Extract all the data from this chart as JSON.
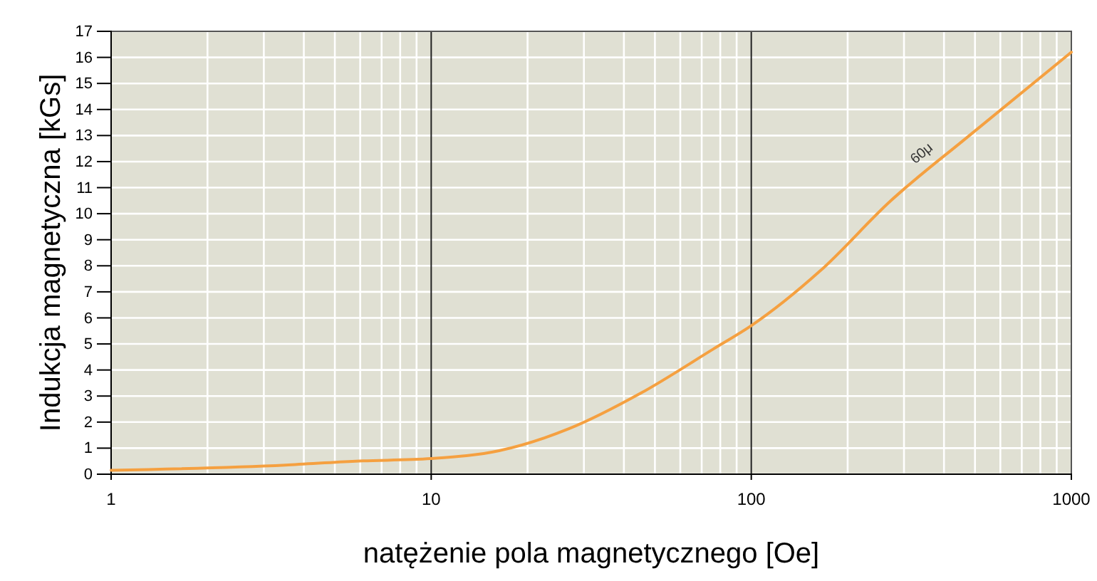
{
  "chart_data": {
    "type": "line",
    "xlabel": "natężenie pola magnetycznego [Oe]",
    "ylabel": "Indukcja magnetyczna [kGs]",
    "log": "x",
    "grid": true,
    "marker": "none",
    "line_style": "solid",
    "xlim": [
      1,
      1000
    ],
    "xticks": [
      1,
      10,
      100,
      1000
    ],
    "ylim": [
      0,
      17
    ],
    "yticks": [
      0,
      1,
      2,
      3,
      4,
      5,
      6,
      7,
      8,
      9,
      10,
      11,
      12,
      13,
      14,
      15,
      16,
      17
    ],
    "x": [
      1,
      3.5,
      5.8,
      10,
      16.3,
      27,
      45,
      76,
      100,
      164,
      273,
      480,
      1000
    ],
    "series": [
      {
        "name": "60μ",
        "color": "#f5a040",
        "values": [
          0.15,
          0.35,
          0.5,
          0.6,
          0.9,
          1.75,
          3.1,
          4.8,
          5.7,
          7.8,
          10.5,
          13.0,
          16.2
        ]
      }
    ]
  }
}
